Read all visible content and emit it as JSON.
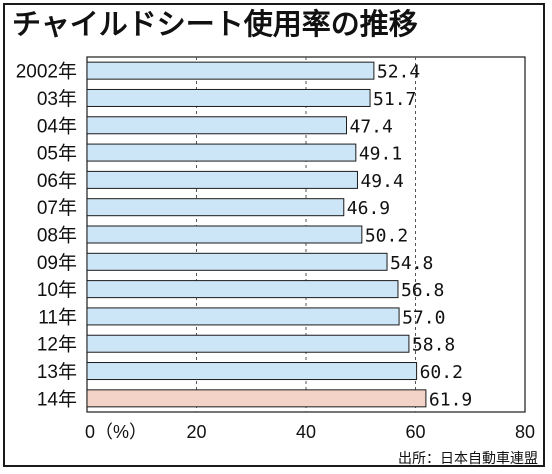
{
  "title": "チャイルドシート使用率の推移",
  "source": "出所：日本自動車連盟",
  "colors": {
    "bar": "#cde6f7",
    "highlight_bar": "#f3d2c8",
    "bar_stroke": "#1a1a1a",
    "grid": "#555555"
  },
  "chart_data": {
    "type": "bar",
    "orientation": "horizontal",
    "categories": [
      "2002年",
      "03年",
      "04年",
      "05年",
      "06年",
      "07年",
      "08年",
      "09年",
      "10年",
      "11年",
      "12年",
      "13年",
      "14年"
    ],
    "values": [
      52.4,
      51.7,
      47.4,
      49.1,
      49.4,
      46.9,
      50.2,
      54.8,
      56.8,
      57.0,
      58.8,
      60.2,
      61.9
    ],
    "value_labels": [
      "52.4",
      "51.7",
      "47.4",
      "49.1",
      "49.4",
      "46.9",
      "50.2",
      "54.8",
      "56.8",
      "57.0",
      "58.8",
      "60.2",
      "61.9"
    ],
    "highlight_index": 12,
    "xlim": [
      0,
      80
    ],
    "ticks": [
      0,
      20,
      40,
      60,
      80
    ],
    "tick_labels": [
      "0（%）",
      "20",
      "40",
      "60",
      "80"
    ],
    "grid": "dashed vertical"
  }
}
